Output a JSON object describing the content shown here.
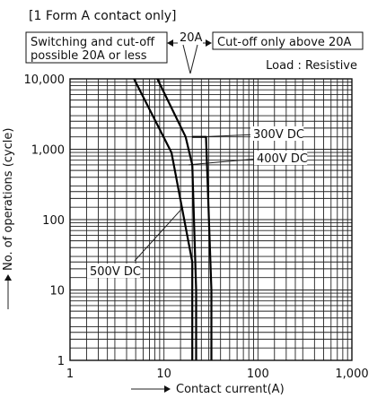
{
  "chart_data": {
    "type": "line",
    "title": "[1 Form A contact only]",
    "xlabel": "Contact current(A)",
    "ylabel": "No. of operations (cycle)",
    "x_scale": "log",
    "y_scale": "log",
    "xlim": [
      1,
      1000
    ],
    "ylim": [
      1,
      10000
    ],
    "x_tick_labels": [
      "1",
      "10",
      "100",
      "1,000"
    ],
    "y_tick_labels": [
      "1",
      "10",
      "100",
      "1,000",
      "10,000"
    ],
    "grid": true,
    "load_note": "Load : Resistive",
    "region_notes": {
      "left": [
        "Switching and cut-off",
        "possible 20A or less"
      ],
      "right": "Cut-off only above 20A",
      "boundary": "20A"
    },
    "series": [
      {
        "name": "500V DC",
        "x": [
          4.8,
          12,
          20,
          20
        ],
        "y": [
          10000,
          900,
          25,
          1
        ]
      },
      {
        "name": "400V DC",
        "x": [
          8.5,
          17,
          20,
          22,
          22
        ],
        "y": [
          10000,
          1500,
          600,
          10,
          1
        ]
      },
      {
        "name": "300V DC",
        "x": [
          20,
          28,
          32,
          32
        ],
        "y": [
          1500,
          1500,
          10,
          1
        ]
      }
    ]
  }
}
